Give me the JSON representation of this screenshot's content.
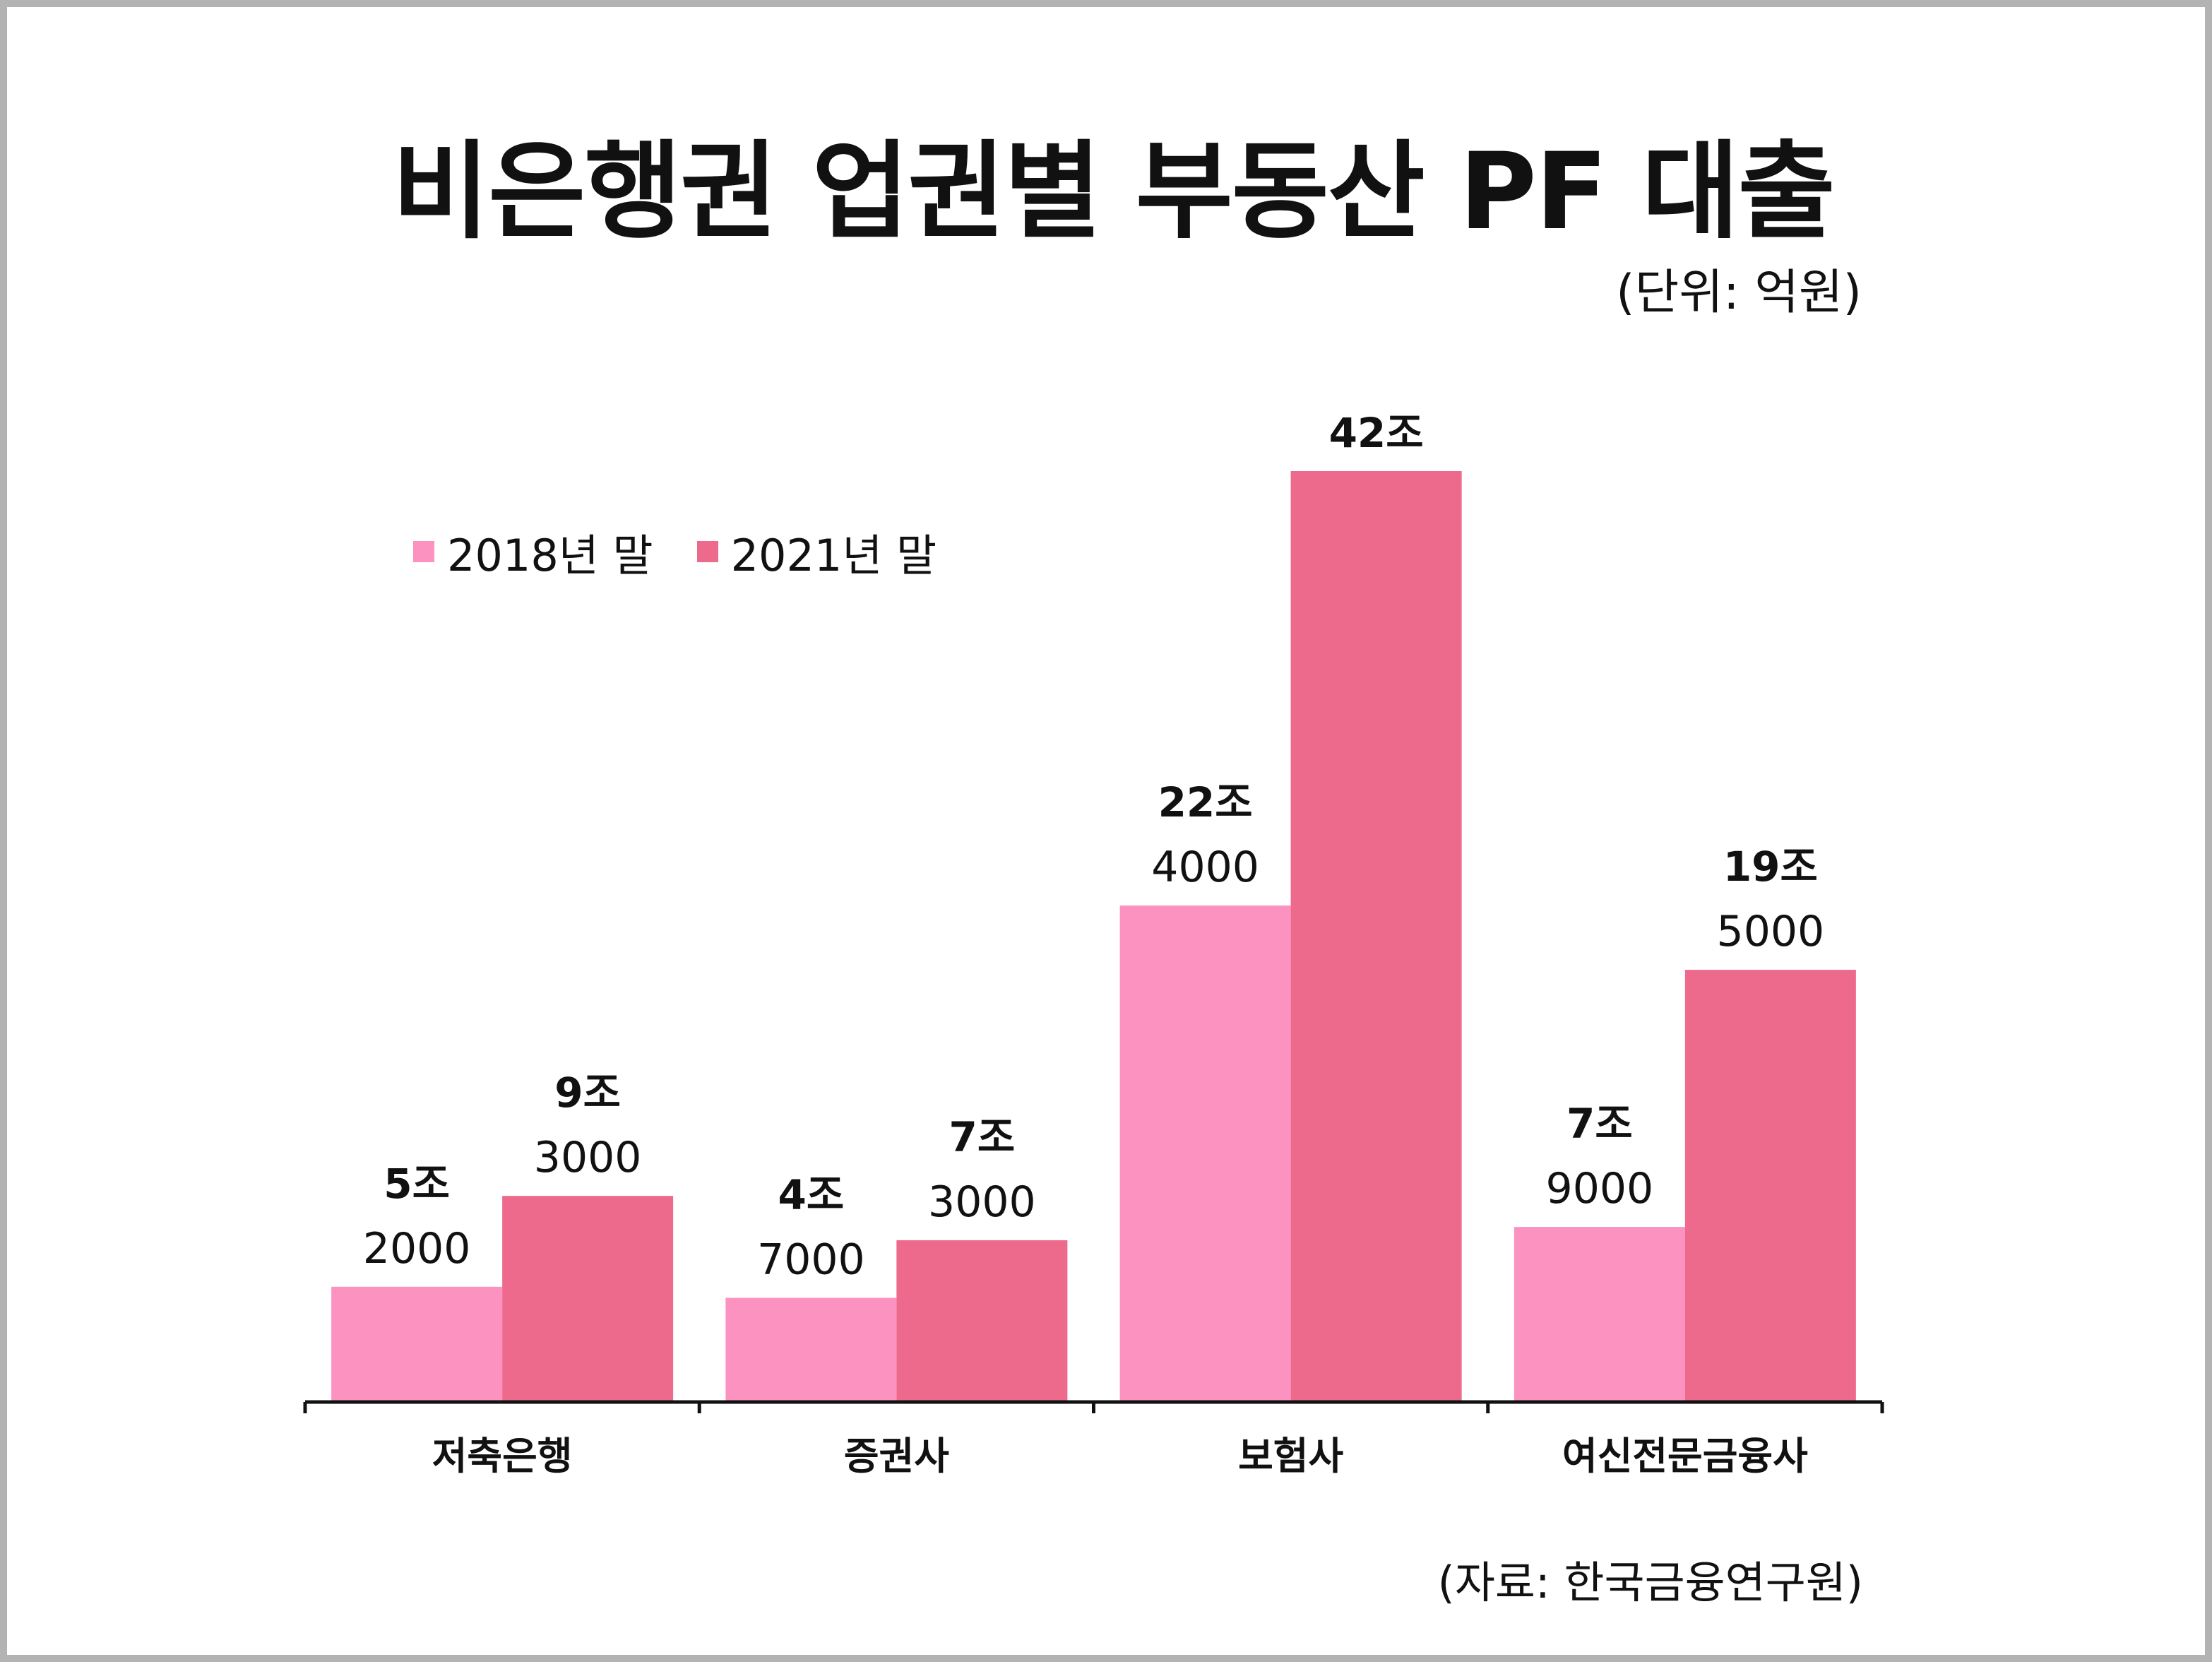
{
  "title": "비은행권 업권별 부동산 PF 대출",
  "unit": "(단위: 억원)",
  "source": "(자료: 한국금융연구원)",
  "colors": {
    "series_2018": "#fc92c0",
    "series_2021": "#ed6a8c"
  },
  "chart_data": {
    "type": "bar",
    "title": "비은행권 업권별 부동산 PF 대출",
    "unit": "억원",
    "categories": [
      "저축은행",
      "증권사",
      "보험사",
      "여신전문금융사"
    ],
    "series": [
      {
        "name": "2018년 말",
        "values": [
          52000,
          47000,
          224000,
          79000
        ],
        "labels": [
          [
            "5조",
            "2000"
          ],
          [
            "4조",
            "7000"
          ],
          [
            "22조",
            "4000"
          ],
          [
            "7조",
            "9000"
          ]
        ]
      },
      {
        "name": "2021년 말",
        "values": [
          93000,
          73000,
          420000,
          195000
        ],
        "labels": [
          [
            "9조",
            "3000"
          ],
          [
            "7조",
            "3000"
          ],
          [
            "42조",
            ""
          ],
          [
            "19조",
            "5000"
          ]
        ]
      }
    ],
    "ylim": [
      0,
      420000
    ],
    "legend_position": "top-left",
    "grid": false
  }
}
